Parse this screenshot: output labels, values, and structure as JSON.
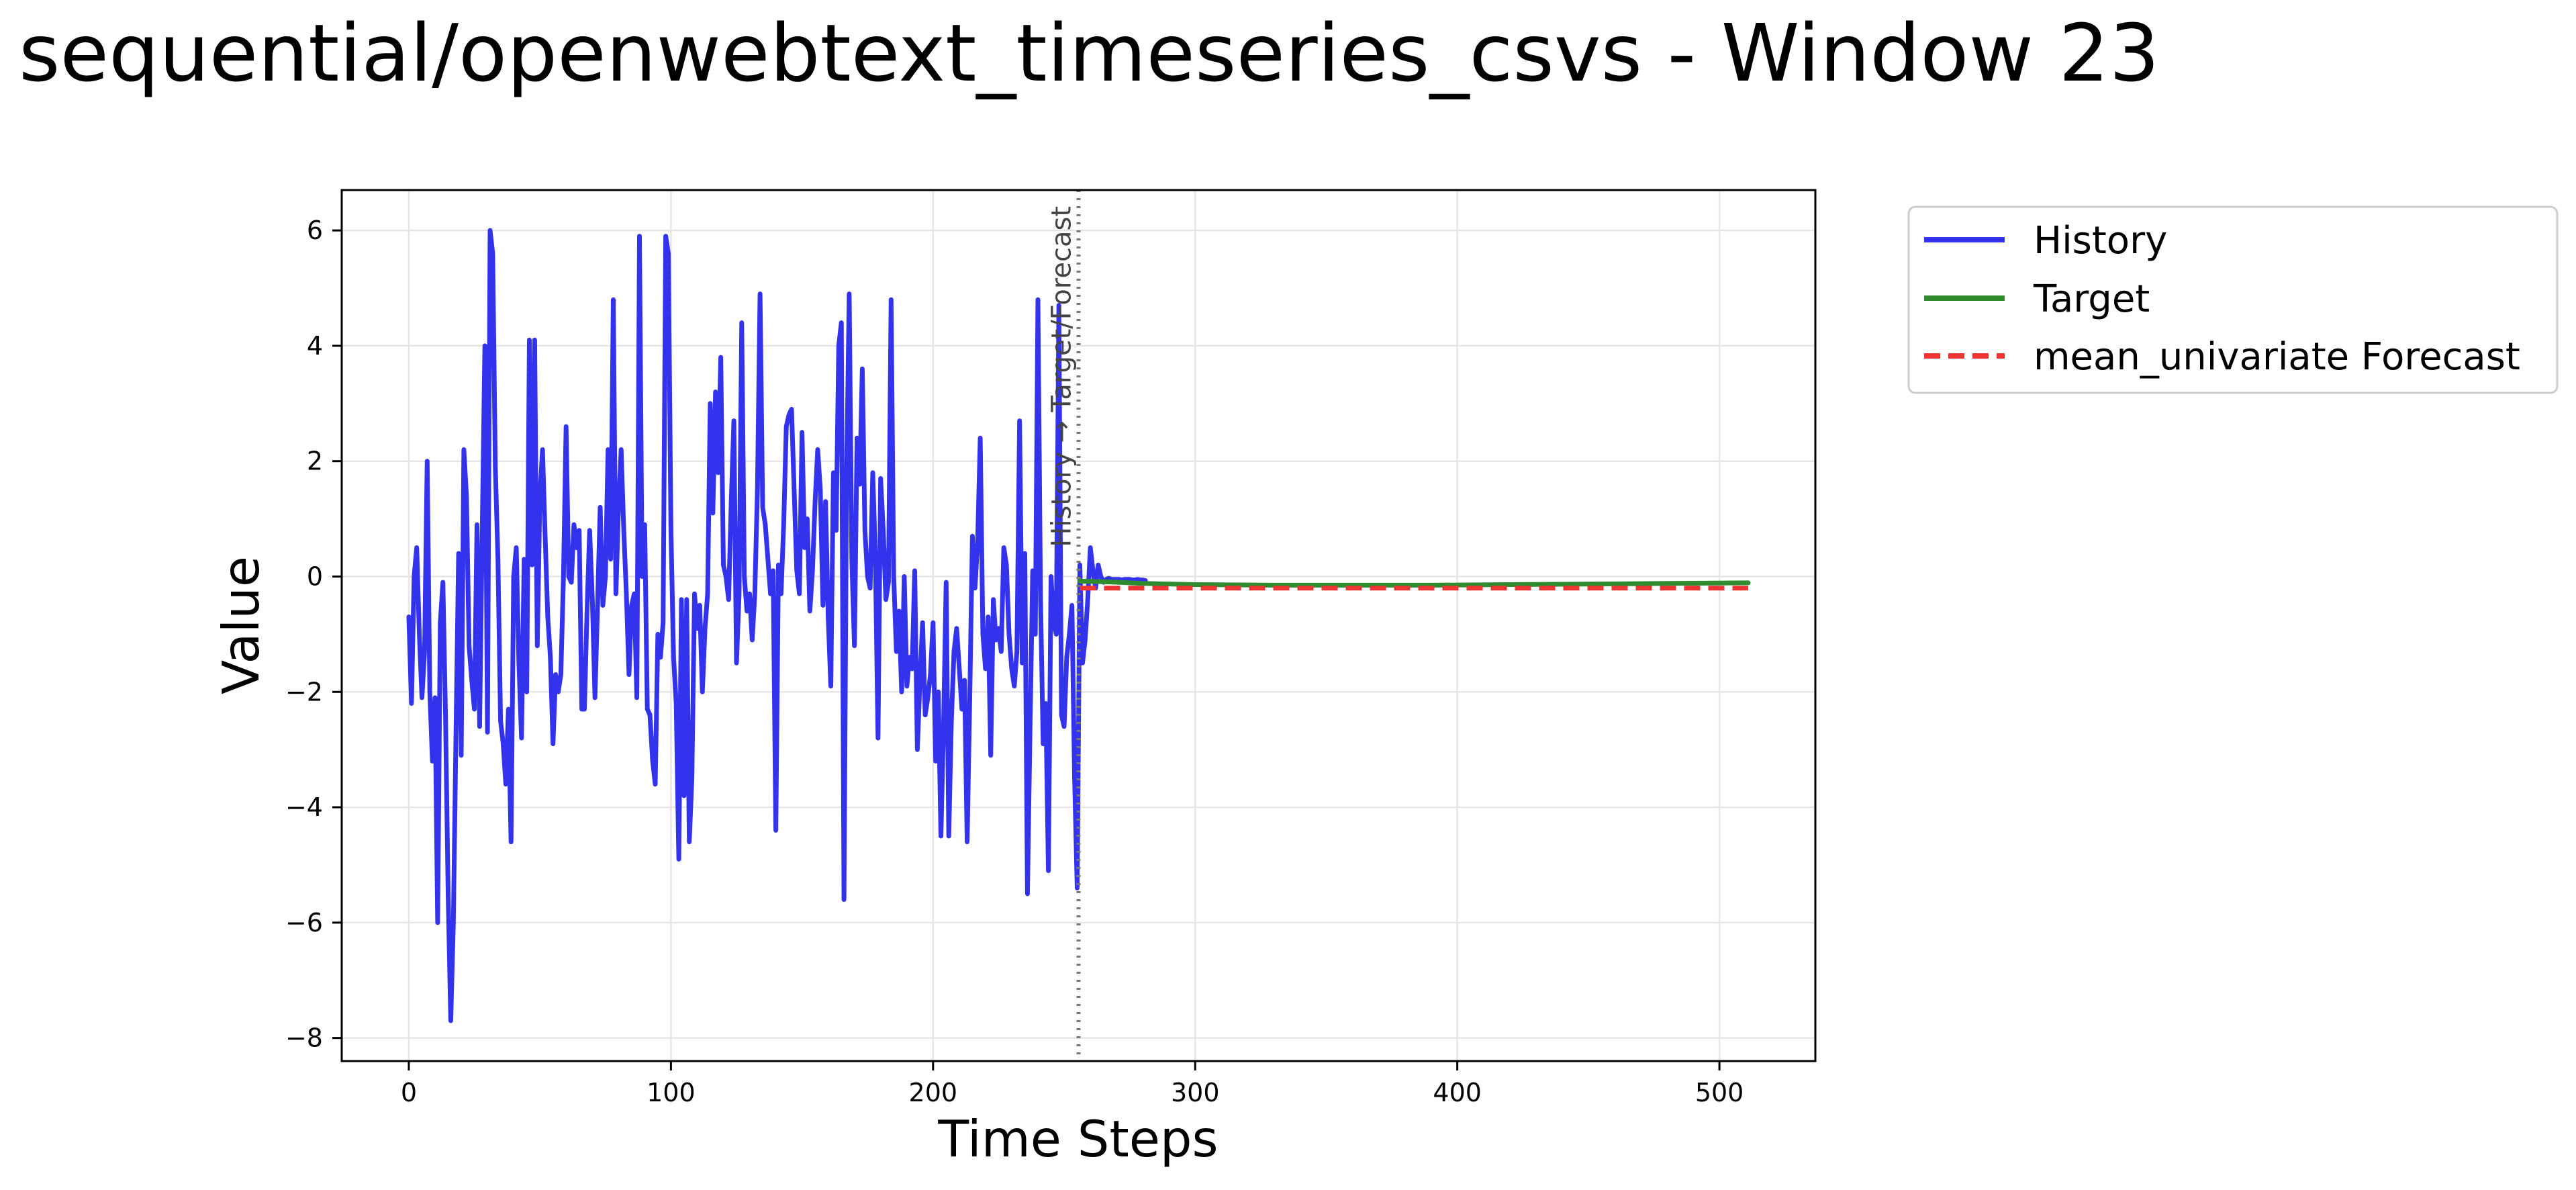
{
  "page": {
    "title": "sequential/openwebtext_timeseries_csvs - Window 23"
  },
  "chart_data": {
    "type": "line",
    "title": "sequential/openwebtext_timeseries_csvs - Window 23",
    "xlabel": "Time Steps",
    "ylabel": "Value",
    "xlim": [
      -25.6,
      536.6
    ],
    "ylim": [
      -8.4,
      6.7
    ],
    "x_ticks": [
      0,
      100,
      200,
      300,
      400,
      500
    ],
    "y_ticks": [
      -8,
      -6,
      -4,
      -2,
      0,
      2,
      4,
      6
    ],
    "x_tick_labels": [
      "0",
      "100",
      "200",
      "300",
      "400",
      "500"
    ],
    "y_tick_labels": [
      "−8",
      "−6",
      "−4",
      "−2",
      "0",
      "2",
      "4",
      "6"
    ],
    "grid": true,
    "legend_position": "outside-upper-right",
    "split": {
      "x": 255.5,
      "label": "History → Target/Forecast"
    },
    "series": [
      {
        "name": "History",
        "color": "#3333ee",
        "style": "solid",
        "x_start": 0,
        "values": [
          -0.7,
          -2.2,
          0.0,
          0.5,
          -1.0,
          -2.1,
          -1.3,
          2.0,
          -2.0,
          -3.2,
          -2.1,
          -6.0,
          -0.8,
          -0.1,
          -2.4,
          -5.5,
          -7.7,
          -6.0,
          -2.7,
          0.4,
          -3.1,
          2.2,
          1.4,
          -1.2,
          -1.8,
          -2.3,
          0.9,
          -2.6,
          0.8,
          4.0,
          -2.7,
          6.0,
          5.6,
          1.9,
          0.3,
          -2.5,
          -2.9,
          -3.6,
          -2.3,
          -4.6,
          0.0,
          0.5,
          -1.5,
          -2.8,
          0.3,
          -2.0,
          4.1,
          0.2,
          4.1,
          -1.2,
          1.4,
          2.2,
          0.7,
          -0.7,
          -1.4,
          -2.9,
          -1.7,
          -2.0,
          -1.7,
          0.0,
          2.6,
          0.0,
          -0.1,
          0.9,
          0.5,
          0.8,
          -2.3,
          -2.3,
          -0.6,
          0.8,
          -0.4,
          -2.1,
          -0.5,
          1.2,
          -0.5,
          0.0,
          2.2,
          0.3,
          4.8,
          -0.3,
          1.2,
          2.2,
          0.8,
          -0.3,
          -1.7,
          -0.5,
          -0.3,
          -2.1,
          5.9,
          0.0,
          0.9,
          -2.3,
          -2.4,
          -3.2,
          -3.6,
          -1.0,
          -1.4,
          -0.8,
          5.9,
          5.6,
          0.8,
          -1.4,
          -2.2,
          -4.9,
          -0.4,
          -3.8,
          -0.4,
          -4.6,
          -3.5,
          -0.3,
          -0.9,
          -0.5,
          -2.0,
          -0.9,
          -0.3,
          3.0,
          1.1,
          3.2,
          1.8,
          3.8,
          0.2,
          0.0,
          -0.4,
          1.3,
          2.7,
          -1.5,
          -0.3,
          4.4,
          0.0,
          -0.6,
          -0.3,
          -1.1,
          -0.3,
          1.5,
          4.9,
          1.2,
          0.9,
          0.3,
          -0.3,
          0.1,
          -4.4,
          0.2,
          -0.3,
          0.9,
          2.6,
          2.8,
          2.9,
          1.5,
          0.1,
          -0.3,
          2.5,
          0.5,
          1.0,
          -0.6,
          0.1,
          1.3,
          2.2,
          1.5,
          -0.5,
          1.3,
          -0.7,
          -1.9,
          1.8,
          0.8,
          4.0,
          4.4,
          -5.6,
          1.7,
          4.9,
          0.3,
          -1.2,
          2.4,
          1.6,
          3.6,
          0.8,
          0.0,
          -0.2,
          1.8,
          0.3,
          -2.8,
          1.7,
          0.8,
          -0.4,
          -0.1,
          4.8,
          0.0,
          -1.3,
          -0.6,
          -2.0,
          0.0,
          -1.9,
          -1.4,
          -1.6,
          0.1,
          -3.0,
          -1.8,
          -0.8,
          -2.4,
          -2.1,
          -1.7,
          -0.8,
          -3.2,
          -2.0,
          -4.5,
          -2.6,
          -0.1,
          -4.5,
          -2.5,
          -1.3,
          -0.9,
          -1.6,
          -2.3,
          -1.8,
          -4.6,
          -2.1,
          0.7,
          -0.2,
          0.6,
          2.4,
          -1.0,
          -1.6,
          -0.7,
          -3.1,
          -0.4,
          -1.1,
          -0.9,
          -1.3,
          0.5,
          0.2,
          -1.0,
          -1.6,
          -1.9,
          -1.3,
          2.7,
          -1.5,
          0.4,
          -5.5,
          -2.6,
          0.1,
          -1.0,
          4.8,
          -0.4,
          -2.9,
          -2.2,
          -5.1,
          0.0,
          -0.8,
          -1.0,
          4.7,
          -2.4,
          -2.6,
          -1.4,
          -1.0,
          -0.5,
          -3.5,
          -5.4,
          0.2,
          -1.5,
          -1.1,
          -0.4,
          0.5,
          0.1,
          -0.2,
          0.2,
          0.0,
          -0.1,
          -0.05,
          -0.03,
          -0.05,
          -0.05,
          -0.05,
          -0.05,
          -0.06,
          -0.05,
          -0.05,
          -0.05,
          -0.06,
          -0.06,
          -0.05,
          -0.06,
          -0.06,
          -0.07
        ]
      },
      {
        "name": "Target",
        "color": "#2e8b2e",
        "style": "solid",
        "x": [
          256,
          265,
          280,
          300,
          330,
          360,
          390,
          420,
          450,
          480,
          511
        ],
        "values": [
          -0.08,
          -0.09,
          -0.12,
          -0.14,
          -0.15,
          -0.15,
          -0.15,
          -0.14,
          -0.13,
          -0.12,
          -0.11
        ]
      },
      {
        "name": "mean_univariate Forecast",
        "color": "#ee3333",
        "style": "dashed",
        "x": [
          256,
          511
        ],
        "values": [
          -0.2,
          -0.2
        ]
      }
    ]
  }
}
